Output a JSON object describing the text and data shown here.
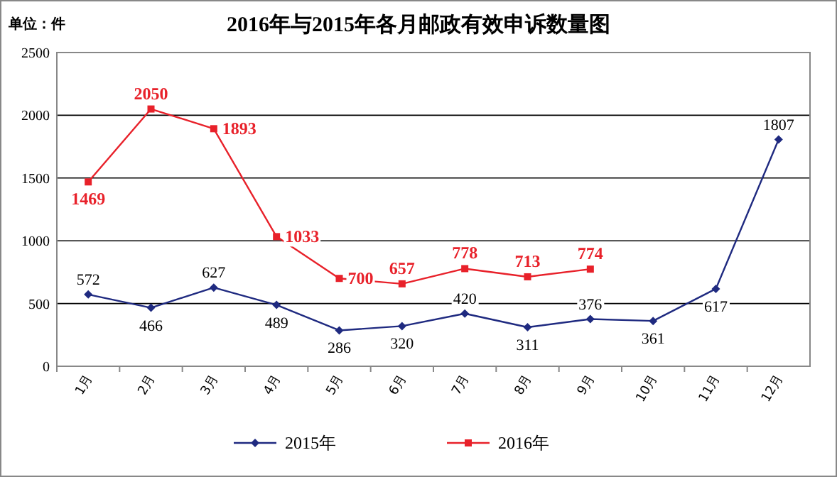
{
  "chart_data": {
    "type": "line",
    "title": "2016年与2015年各月邮政有效申诉数量图",
    "annotations": [
      "单位：件"
    ],
    "categories": [
      "1月",
      "2月",
      "3月",
      "4月",
      "5月",
      "6月",
      "7月",
      "8月",
      "9月",
      "10月",
      "11月",
      "12月"
    ],
    "series": [
      {
        "name": "2015年",
        "color": "#1f2a80",
        "marker": "diamond",
        "values": [
          572,
          466,
          627,
          489,
          286,
          320,
          420,
          311,
          376,
          361,
          617,
          1807
        ]
      },
      {
        "name": "2016年",
        "color": "#e8212a",
        "marker": "square",
        "values": [
          1469,
          2050,
          1893,
          1033,
          700,
          657,
          778,
          713,
          774,
          null,
          null,
          null
        ]
      }
    ],
    "ylim": [
      0,
      2500
    ],
    "yticks": [
      0,
      500,
      1000,
      1500,
      2000,
      2500
    ],
    "grid": "y",
    "legend": "bottom",
    "data_labels": true
  }
}
